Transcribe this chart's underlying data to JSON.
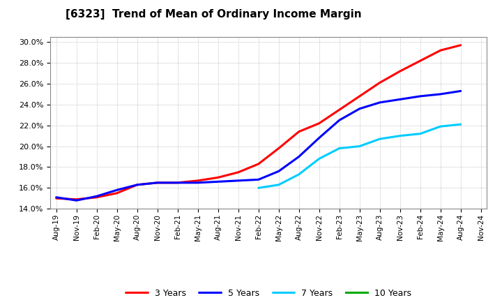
{
  "title": "[6323]  Trend of Mean of Ordinary Income Margin",
  "ylim": [
    0.14,
    0.305
  ],
  "yticks": [
    0.14,
    0.16,
    0.18,
    0.2,
    0.22,
    0.24,
    0.26,
    0.28,
    0.3
  ],
  "background_color": "#ffffff",
  "grid_color": "#aaaaaa",
  "x_tick_labels": [
    "Aug-19",
    "Nov-19",
    "Feb-20",
    "May-20",
    "Aug-20",
    "Nov-20",
    "Feb-21",
    "May-21",
    "Aug-21",
    "Nov-21",
    "Feb-22",
    "May-22",
    "Aug-22",
    "Nov-22",
    "Feb-23",
    "May-23",
    "Aug-23",
    "Nov-23",
    "Feb-24",
    "May-24",
    "Aug-24",
    "Nov-24"
  ],
  "series": {
    "3 Years": {
      "color": "#ff0000",
      "xi": [
        0,
        1,
        2,
        3,
        4,
        5,
        6,
        7,
        8,
        9,
        10,
        11,
        12,
        13,
        14,
        15,
        16,
        17,
        18,
        19,
        20
      ],
      "y": [
        0.15,
        0.149,
        0.151,
        0.155,
        0.163,
        0.165,
        0.165,
        0.167,
        0.17,
        0.175,
        0.183,
        0.198,
        0.214,
        0.222,
        0.235,
        0.248,
        0.261,
        0.272,
        0.282,
        0.292,
        0.297
      ]
    },
    "5 Years": {
      "color": "#0000ff",
      "xi": [
        0,
        1,
        2,
        3,
        4,
        5,
        6,
        7,
        8,
        9,
        10,
        11,
        12,
        13,
        14,
        15,
        16,
        17,
        18,
        19,
        20
      ],
      "y": [
        0.151,
        0.148,
        0.152,
        0.158,
        0.163,
        0.165,
        0.165,
        0.165,
        0.166,
        0.167,
        0.168,
        0.176,
        0.19,
        0.208,
        0.225,
        0.236,
        0.242,
        0.245,
        0.248,
        0.25,
        0.253
      ]
    },
    "7 Years": {
      "color": "#00ccff",
      "xi": [
        10,
        11,
        12,
        13,
        14,
        15,
        16,
        17,
        18,
        19,
        20
      ],
      "y": [
        0.16,
        0.163,
        0.173,
        0.188,
        0.198,
        0.2,
        0.207,
        0.21,
        0.212,
        0.219,
        0.221
      ]
    },
    "10 Years": {
      "color": "#00aa00",
      "xi": [],
      "y": []
    }
  },
  "legend_colors": [
    "#ff0000",
    "#0000ff",
    "#00ccff",
    "#00aa00"
  ],
  "line_width": 2.2
}
